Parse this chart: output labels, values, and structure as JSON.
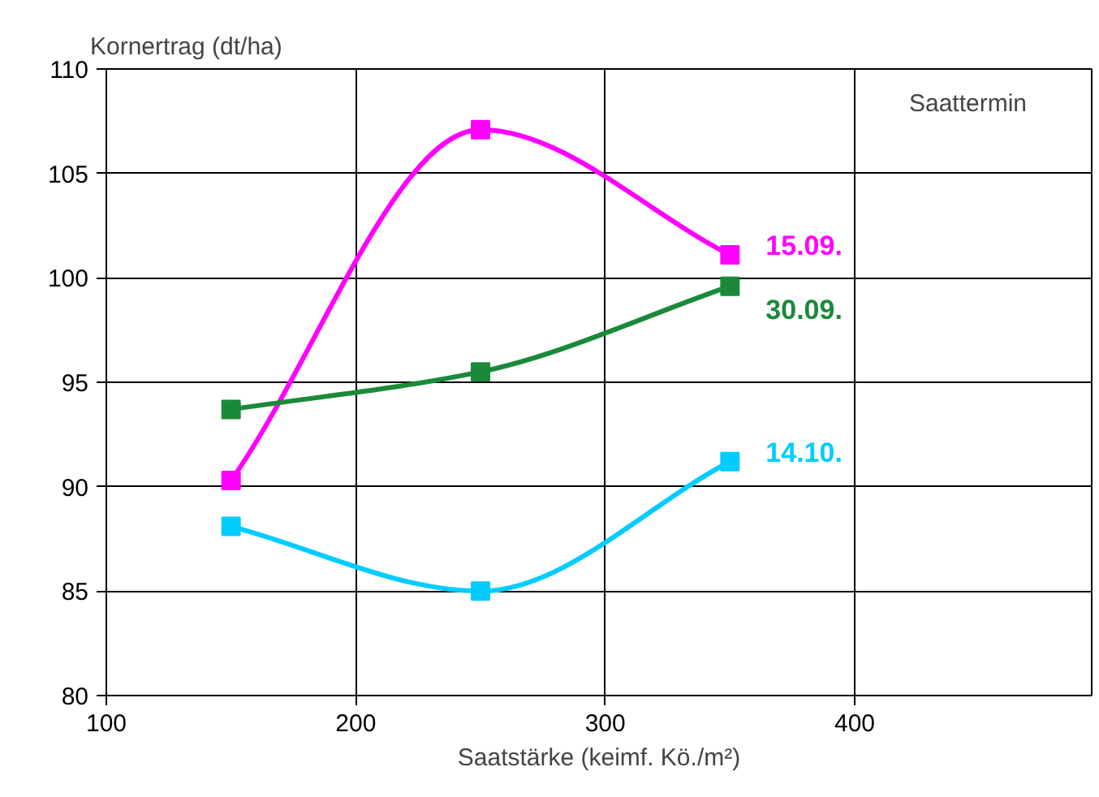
{
  "chart_data": {
    "type": "line",
    "xlabel": "Saatstärke (keimf. Kö./m²)",
    "ylabel": "Kornertrag (dt/ha)",
    "legend_title": "Saattermin",
    "x": [
      150,
      250,
      350
    ],
    "series": [
      {
        "name": "15.09.",
        "color": "#ff00ff",
        "values": [
          90.3,
          107.1,
          101.1
        ]
      },
      {
        "name": "30.09.",
        "color": "#1a8a3a",
        "values": [
          93.7,
          95.5,
          99.6
        ]
      },
      {
        "name": "14.10.",
        "color": "#00ccff",
        "values": [
          88.1,
          85.0,
          91.2
        ]
      }
    ],
    "xlim": [
      100,
      495
    ],
    "ylim": [
      80,
      110
    ],
    "xticks": [
      100,
      200,
      300,
      400
    ],
    "yticks": [
      80,
      85,
      90,
      95,
      100,
      105,
      110
    ],
    "grid": true,
    "marker": "square",
    "line_style": "solid"
  }
}
